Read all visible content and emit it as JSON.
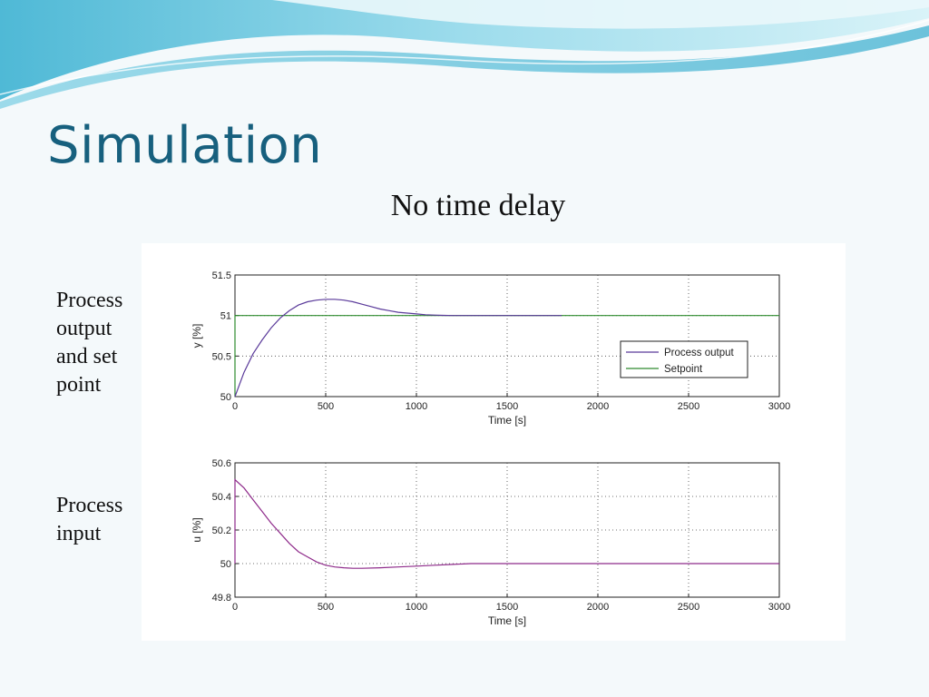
{
  "slide": {
    "title": "Simulation",
    "subtitle": "No time delay",
    "top_label": "Process output and set point",
    "bottom_label": "Process input"
  },
  "colors": {
    "title": "#17607e",
    "wave_primary": "#5ec3dc",
    "wave_light": "#b9e6f0",
    "process_output": "#5a3a9a",
    "setpoint": "#2e8b2e",
    "process_input": "#8e2a8a"
  },
  "chart_data": [
    {
      "type": "line",
      "xlabel": "Time [s]",
      "ylabel": "y [%]",
      "xlim": [
        0,
        3000
      ],
      "ylim": [
        50,
        51.5
      ],
      "xticks": [
        "0",
        "500",
        "1000",
        "1500",
        "2000",
        "2500",
        "3000"
      ],
      "yticks": [
        "50",
        "50.5",
        "51",
        "51.5"
      ],
      "grid": true,
      "legend": "right",
      "series": [
        {
          "name": "Process output",
          "x": [
            0,
            50,
            100,
            150,
            200,
            250,
            300,
            350,
            400,
            450,
            500,
            550,
            600,
            650,
            700,
            750,
            800,
            850,
            900,
            950,
            1000,
            1050,
            1100,
            1150,
            1200,
            1300,
            1400,
            1500,
            1600,
            1700,
            1800
          ],
          "y": [
            50.0,
            50.3,
            50.53,
            50.7,
            50.85,
            50.97,
            51.06,
            51.13,
            51.17,
            51.19,
            51.2,
            51.2,
            51.19,
            51.17,
            51.14,
            51.11,
            51.08,
            51.06,
            51.04,
            51.03,
            51.02,
            51.01,
            51.005,
            51.002,
            51.0,
            51.0,
            51.0,
            51.0,
            51.0,
            51.0,
            51.0
          ]
        },
        {
          "name": "Setpoint",
          "x": [
            0,
            0,
            3000
          ],
          "y": [
            50.0,
            51.0,
            51.0
          ]
        }
      ]
    },
    {
      "type": "line",
      "xlabel": "Time [s]",
      "ylabel": "u [%]",
      "xlim": [
        0,
        3000
      ],
      "ylim": [
        49.8,
        50.6
      ],
      "xticks": [
        "0",
        "500",
        "1000",
        "1500",
        "2000",
        "2500",
        "3000"
      ],
      "yticks": [
        "49.8",
        "50",
        "50.2",
        "50.4",
        "50.6"
      ],
      "grid": true,
      "series": [
        {
          "name": "",
          "x": [
            0,
            0,
            50,
            100,
            150,
            200,
            250,
            300,
            350,
            400,
            450,
            500,
            550,
            600,
            650,
            700,
            800,
            900,
            1000,
            1100,
            1200,
            1300,
            1500,
            2000,
            3000
          ],
          "y": [
            50.0,
            50.5,
            50.45,
            50.38,
            50.31,
            50.24,
            50.18,
            50.12,
            50.07,
            50.04,
            50.01,
            49.99,
            49.98,
            49.975,
            49.972,
            49.972,
            49.975,
            49.98,
            49.985,
            49.99,
            49.995,
            50.0,
            50.0,
            50.0,
            50.0
          ]
        }
      ]
    }
  ]
}
